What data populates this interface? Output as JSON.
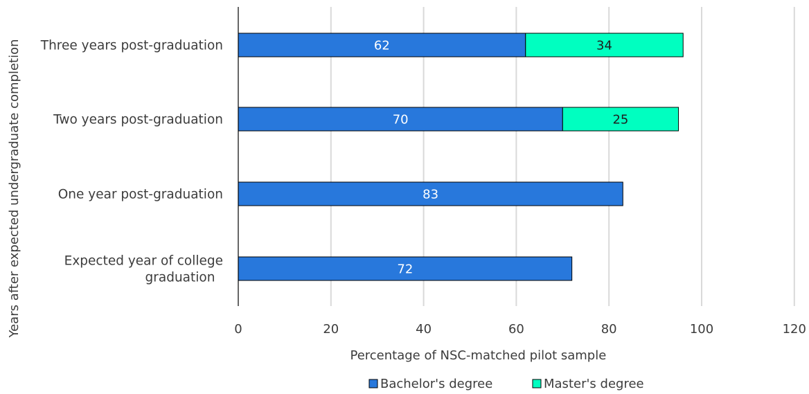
{
  "chart_data": {
    "type": "bar",
    "orientation": "horizontal",
    "stacked": true,
    "categories": [
      "Three years post-graduation",
      "Two years post-graduation",
      "One year post-graduation",
      "Expected year of college graduation"
    ],
    "category_lines": [
      [
        "Three years post-graduation"
      ],
      [
        "Two years post-graduation"
      ],
      [
        "One year post-graduation"
      ],
      [
        "Expected year of college",
        "graduation"
      ]
    ],
    "series": [
      {
        "name": "Bachelor's degree",
        "values": [
          62,
          70,
          83,
          72
        ],
        "labels": [
          "62",
          "70",
          "83",
          "72"
        ],
        "color": "#2878dc"
      },
      {
        "name": "Master's degree",
        "values": [
          34,
          25,
          null,
          null
        ],
        "labels": [
          "34",
          "25",
          "",
          ""
        ],
        "color": "#00ffc0"
      }
    ],
    "title": "",
    "xlabel": "Percentage of NSC-matched pilot sample",
    "ylabel": "Years after expected undergraduate completion",
    "xlim": [
      0,
      120
    ],
    "xticks": [
      "0",
      "20",
      "40",
      "60",
      "80",
      "100",
      "120"
    ],
    "grid": "vertical",
    "legend_position": "bottom-center",
    "label_color": "#ffffff",
    "bar_outline": "#000000",
    "grid_color": "#d9d9d9"
  }
}
